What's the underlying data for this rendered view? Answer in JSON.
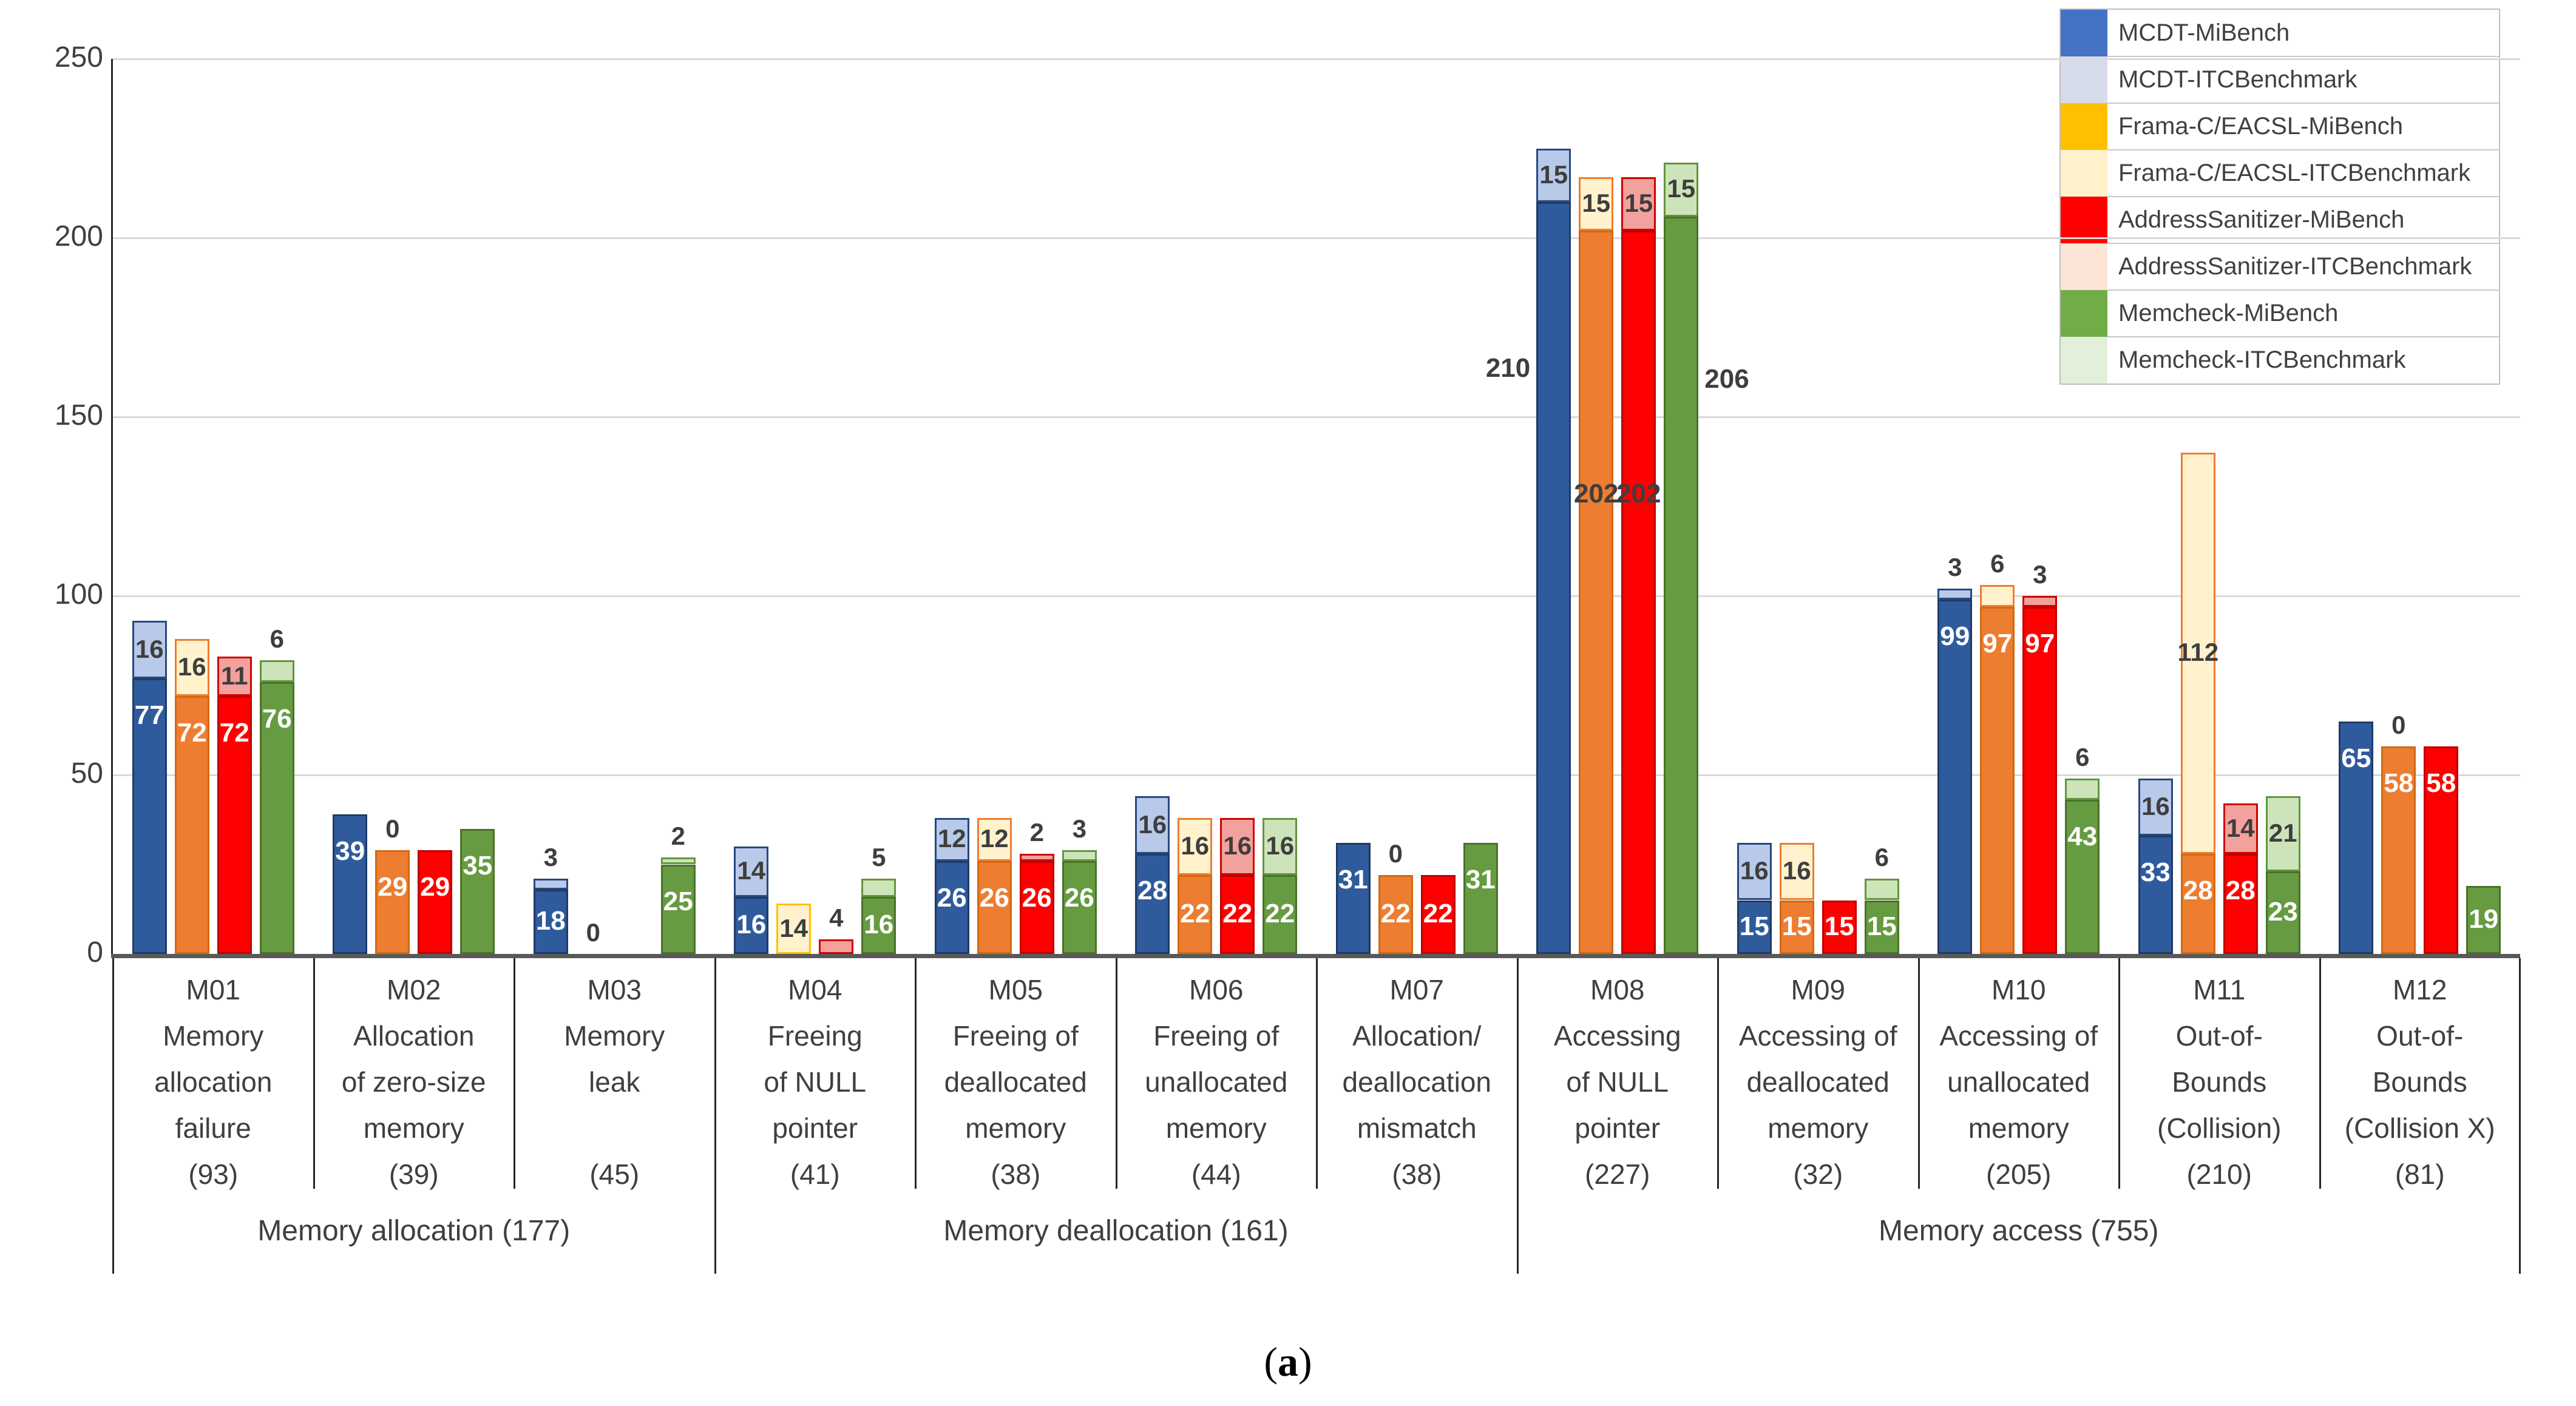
{
  "caption_open": "(",
  "caption_letter": "a",
  "caption_close": ")",
  "chart_data": {
    "type": "bar",
    "stacked": true,
    "title": "",
    "xlabel": "",
    "ylabel": "",
    "ylim": [
      0,
      250
    ],
    "yticks": [
      0,
      50,
      100,
      150,
      200,
      250
    ],
    "grid": true,
    "legend_position": "top-right",
    "legend": [
      {
        "label": "MCDT-MiBench",
        "color": "#4472c4"
      },
      {
        "label": "MCDT-ITCBenchmark",
        "color": "#d6dce9"
      },
      {
        "label": "Frama-C/EACSL-MiBench",
        "color": "#ffc000"
      },
      {
        "label": "Frama-C/EACSL-ITCBenchmark",
        "color": "#fff1c9"
      },
      {
        "label": "AddressSanitizer-MiBench",
        "color": "#ff0000"
      },
      {
        "label": "AddressSanitizer-ITCBenchmark",
        "color": "#fce4d6"
      },
      {
        "label": "Memcheck-MiBench",
        "color": "#70ad47"
      },
      {
        "label": "Memcheck-ITCBenchmark",
        "color": "#e2efda"
      }
    ],
    "series_styles": [
      {
        "tool": "MCDT",
        "mi_fill": "#2f5b9d",
        "mi_border": "#1f3b66",
        "itc_fill": "#b8c9e9",
        "itc_border": "#27497f"
      },
      {
        "tool": "Frama-C/EACSL",
        "mi_fill": "#ed7d31",
        "mi_border": "#d2690f",
        "itc_fill": "#fff2cc",
        "itc_border": "#ed7d31"
      },
      {
        "tool": "AddressSanitizer",
        "mi_fill": "#ff0000",
        "mi_border": "#c00000",
        "itc_fill": "#f3a19c",
        "itc_border": "#d00000"
      },
      {
        "tool": "Memcheck",
        "mi_fill": "#669b41",
        "mi_border": "#4a7229",
        "itc_fill": "#cde4ba",
        "itc_border": "#63953c"
      }
    ],
    "groups": [
      {
        "id": "M01",
        "desc": [
          "Memory",
          "allocation",
          "failure",
          "(93)"
        ],
        "total": 93,
        "bars": [
          {
            "mi": 77,
            "mi_label": "77",
            "itc": 16,
            "itc_label": "16"
          },
          {
            "mi": 72,
            "mi_label": "72",
            "itc": 16,
            "itc_label": "16"
          },
          {
            "mi": 72,
            "mi_label": "72",
            "itc": 11,
            "itc_label": "11"
          },
          {
            "mi": 76,
            "mi_label": "76",
            "itc": 6,
            "itc_label": "6"
          }
        ]
      },
      {
        "id": "M02",
        "desc": [
          "Allocation",
          "of zero-size",
          "memory",
          "(39)"
        ],
        "total": 39,
        "bars": [
          {
            "mi": 39,
            "mi_label": "39",
            "itc": 0,
            "itc_label": null
          },
          {
            "mi": 29,
            "mi_label": "29",
            "itc": 0,
            "itc_label": "0"
          },
          {
            "mi": 29,
            "mi_label": "29",
            "itc": 0,
            "itc_label": null
          },
          {
            "mi": 35,
            "mi_label": "35",
            "itc": 0,
            "itc_label": null
          }
        ]
      },
      {
        "id": "M03",
        "desc": [
          "Memory",
          "leak",
          "",
          "(45)"
        ],
        "total": 45,
        "bars": [
          {
            "mi": 18,
            "mi_label": "18",
            "itc": 3,
            "itc_label": "3"
          },
          {
            "mi": 0,
            "mi_label": null,
            "itc": 0,
            "itc_label": "0"
          },
          {
            "mi": 0,
            "mi_label": null,
            "itc": 0,
            "itc_label": null
          },
          {
            "mi": 25,
            "mi_label": "25",
            "itc": 2,
            "itc_label": "2"
          }
        ]
      },
      {
        "id": "M04",
        "desc": [
          "Freeing",
          "of NULL",
          "pointer",
          "(41)"
        ],
        "total": 41,
        "bars": [
          {
            "mi": 16,
            "mi_label": "16",
            "itc": 14,
            "itc_label": "14"
          },
          {
            "mi": 0,
            "mi_label": null,
            "itc": 14,
            "itc_label": "14",
            "itc_border": "#ffc000"
          },
          {
            "mi": 0,
            "mi_label": null,
            "itc": 4,
            "itc_label": "4"
          },
          {
            "mi": 16,
            "mi_label": "16",
            "itc": 5,
            "itc_label": "5"
          }
        ]
      },
      {
        "id": "M05",
        "desc": [
          "Freeing of",
          "deallocated",
          "memory",
          "(38)"
        ],
        "total": 38,
        "bars": [
          {
            "mi": 26,
            "mi_label": "26",
            "itc": 12,
            "itc_label": "12"
          },
          {
            "mi": 26,
            "mi_label": "26",
            "itc": 12,
            "itc_label": "12"
          },
          {
            "mi": 26,
            "mi_label": "26",
            "itc": 2,
            "itc_label": "2"
          },
          {
            "mi": 26,
            "mi_label": "26",
            "itc": 3,
            "itc_label": "3"
          }
        ]
      },
      {
        "id": "M06",
        "desc": [
          "Freeing of",
          "unallocated",
          "memory",
          "(44)"
        ],
        "total": 44,
        "bars": [
          {
            "mi": 28,
            "mi_label": "28",
            "itc": 16,
            "itc_label": "16"
          },
          {
            "mi": 22,
            "mi_label": "22",
            "itc": 16,
            "itc_label": "16"
          },
          {
            "mi": 22,
            "mi_label": "22",
            "itc": 16,
            "itc_label": "16"
          },
          {
            "mi": 22,
            "mi_label": "22",
            "itc": 16,
            "itc_label": "16"
          }
        ]
      },
      {
        "id": "M07",
        "desc": [
          "Allocation/",
          "deallocation",
          "mismatch",
          "(38)"
        ],
        "total": 38,
        "bars": [
          {
            "mi": 31,
            "mi_label": "31",
            "itc": 0,
            "itc_label": null
          },
          {
            "mi": 22,
            "mi_label": "22",
            "itc": 0,
            "itc_label": "0"
          },
          {
            "mi": 22,
            "mi_label": "22",
            "itc": 0,
            "itc_label": null
          },
          {
            "mi": 31,
            "mi_label": "31",
            "itc": 0,
            "itc_label": null
          }
        ]
      },
      {
        "id": "M08",
        "desc": [
          "Accessing",
          "of NULL",
          "pointer",
          "(227)"
        ],
        "total": 227,
        "bars": [
          {
            "mi": 210,
            "mi_label": "210",
            "itc": 15,
            "itc_label": "15",
            "mi_pos": "left",
            "mi_vy": 163,
            "mi_color": "#3e3e3e"
          },
          {
            "mi": 202,
            "mi_label": "202",
            "itc": 15,
            "itc_label": "15",
            "mi_vy": 128,
            "mi_color": "#3e3e3e"
          },
          {
            "mi": 202,
            "mi_label": "202",
            "itc": 15,
            "itc_label": "15",
            "mi_vy": 128,
            "mi_color": "#3e3e3e"
          },
          {
            "mi": 206,
            "mi_label": "206",
            "itc": 15,
            "itc_label": "15",
            "mi_pos": "right",
            "mi_vy": 160,
            "mi_color": "#3e3e3e"
          }
        ]
      },
      {
        "id": "M09",
        "desc": [
          "Accessing of",
          "deallocated",
          "memory",
          "(32)"
        ],
        "total": 32,
        "bars": [
          {
            "mi": 15,
            "mi_label": "15",
            "itc": 16,
            "itc_label": "16"
          },
          {
            "mi": 15,
            "mi_label": "15",
            "itc": 16,
            "itc_label": "16"
          },
          {
            "mi": 15,
            "mi_label": "15",
            "itc": 0,
            "itc_label": null
          },
          {
            "mi": 15,
            "mi_label": "15",
            "itc": 6,
            "itc_label": "6"
          }
        ]
      },
      {
        "id": "M10",
        "desc": [
          "Accessing of",
          "unallocated",
          "memory",
          "(205)"
        ],
        "total": 205,
        "bars": [
          {
            "mi": 99,
            "mi_label": "99",
            "itc": 3,
            "itc_label": "3"
          },
          {
            "mi": 97,
            "mi_label": "97",
            "itc": 6,
            "itc_label": "6"
          },
          {
            "mi": 97,
            "mi_label": "97",
            "itc": 3,
            "itc_label": "3"
          },
          {
            "mi": 43,
            "mi_label": "43",
            "itc": 6,
            "itc_label": "6"
          }
        ]
      },
      {
        "id": "M11",
        "desc": [
          "Out-of-",
          "Bounds",
          "(Collision)",
          "(210)"
        ],
        "total": 210,
        "bars": [
          {
            "mi": 33,
            "mi_label": "33",
            "itc": 16,
            "itc_label": "16"
          },
          {
            "mi": 28,
            "mi_label": "28",
            "itc": 112,
            "itc_label": "112"
          },
          {
            "mi": 28,
            "mi_label": "28",
            "itc": 14,
            "itc_label": "14"
          },
          {
            "mi": 23,
            "mi_label": "23",
            "itc": 21,
            "itc_label": "21"
          }
        ]
      },
      {
        "id": "M12",
        "desc": [
          "Out-of-",
          "Bounds",
          "(Collision X)",
          "(81)"
        ],
        "total": 81,
        "bars": [
          {
            "mi": 65,
            "mi_label": "65",
            "itc": 0,
            "itc_label": null
          },
          {
            "mi": 58,
            "mi_label": "58",
            "itc": 0,
            "itc_label": "0"
          },
          {
            "mi": 58,
            "mi_label": "58",
            "itc": 0,
            "itc_label": null
          },
          {
            "mi": 19,
            "mi_label": "19",
            "itc": 0,
            "itc_label": null
          }
        ]
      }
    ],
    "supergroups": [
      {
        "label": "Memory allocation (177)",
        "from": 0,
        "to": 3
      },
      {
        "label": "Memory deallocation (161)",
        "from": 3,
        "to": 7
      },
      {
        "label": "Memory access (755)",
        "from": 7,
        "to": 12
      }
    ]
  }
}
